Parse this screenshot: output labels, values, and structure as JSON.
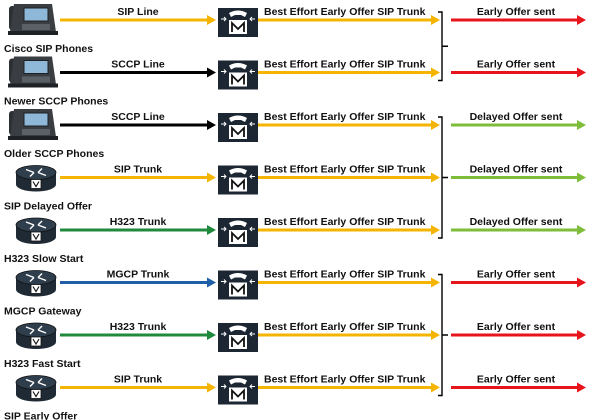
{
  "rows": [
    {
      "device": "Cisco SIP Phones",
      "device_type": "phone",
      "link_label": "SIP Line",
      "link_color": "#f5b400",
      "trunk_label": "Best Effort Early Offer SIP Trunk",
      "outcome": "Early Offer sent",
      "outcome_color": "#e8141c"
    },
    {
      "device": "Newer SCCP Phones",
      "device_type": "phone",
      "link_label": "SCCP Line",
      "link_color": "#000000",
      "trunk_label": "Best Effort Early Offer SIP Trunk",
      "outcome": "Early Offer sent",
      "outcome_color": "#e8141c"
    },
    {
      "device": "Older SCCP Phones",
      "device_type": "phone",
      "link_label": "SCCP Line",
      "link_color": "#000000",
      "trunk_label": "Best Effort Early Offer SIP Trunk",
      "outcome": "Delayed Offer sent",
      "outcome_color": "#7dbd3a"
    },
    {
      "device": "SIP Delayed Offer",
      "device_type": "router",
      "link_label": "SIP Trunk",
      "link_color": "#f5b400",
      "trunk_label": "Best Effort Early Offer SIP Trunk",
      "outcome": "Delayed Offer sent",
      "outcome_color": "#7dbd3a"
    },
    {
      "device": "H323 Slow Start",
      "device_type": "router",
      "link_label": "H323 Trunk",
      "link_color": "#1f8a3c",
      "trunk_label": "Best Effort Early Offer SIP Trunk",
      "outcome": "Delayed Offer sent",
      "outcome_color": "#7dbd3a"
    },
    {
      "device": "MGCP Gateway",
      "device_type": "router",
      "link_label": "MGCP Trunk",
      "link_color": "#1f5fa8",
      "trunk_label": "Best Effort Early Offer SIP Trunk",
      "outcome": "Early Offer sent",
      "outcome_color": "#e8141c"
    },
    {
      "device": "H323 Fast Start",
      "device_type": "router",
      "link_label": "H323 Trunk",
      "link_color": "#1f8a3c",
      "trunk_label": "Best Effort Early Offer SIP Trunk",
      "outcome": "Early Offer sent",
      "outcome_color": "#e8141c"
    },
    {
      "device": "SIP Early Offer",
      "device_type": "router",
      "link_label": "SIP Trunk",
      "link_color": "#f5b400",
      "trunk_label": "Best Effort Early Offer SIP Trunk",
      "outcome": "Early Offer sent",
      "outcome_color": "#e8141c"
    }
  ],
  "groups": [
    {
      "rows": [
        0,
        1
      ]
    },
    {
      "rows": [
        2,
        3,
        4
      ]
    },
    {
      "rows": [
        5,
        6,
        7
      ]
    }
  ],
  "icons": {
    "phone": "ip-phone-icon",
    "router": "router-icon",
    "call_manager": "call-manager-icon"
  },
  "colors": {
    "trunk_line": "#f5b400",
    "bracket": "#000000",
    "router_body": "#2f3e4c",
    "cm_body": "#1c2733"
  }
}
